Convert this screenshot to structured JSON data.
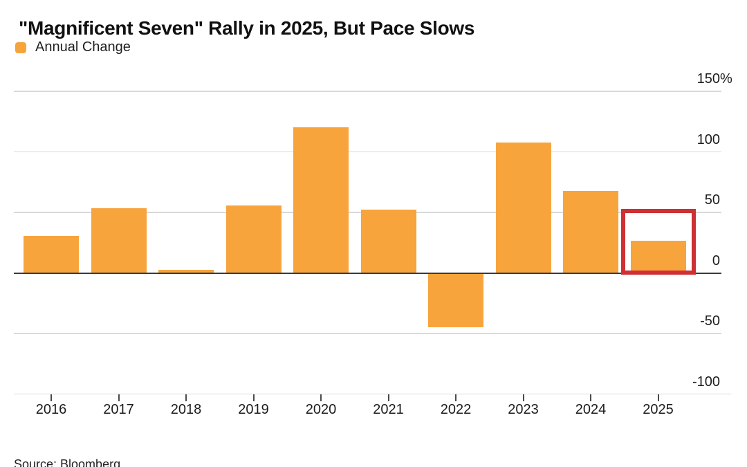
{
  "page": {
    "background": "#FFFFFF"
  },
  "header": {
    "title": "\"Magnificent Seven\" Rally in 2025, But Pace Slows"
  },
  "legend": {
    "items": [
      {
        "label": "Annual Change",
        "swatch_color": "#F7A43D"
      }
    ]
  },
  "footer": {
    "source": "Source: Bloomberg"
  },
  "chart_data": {
    "type": "bar",
    "title": "\"Magnificent Seven\" Rally in 2025, But Pace Slows",
    "legend": [
      "Annual Change"
    ],
    "legend_position": "top-left",
    "categories": [
      "2016",
      "2017",
      "2018",
      "2019",
      "2020",
      "2021",
      "2022",
      "2023",
      "2024",
      "2025"
    ],
    "values": [
      30,
      53,
      2,
      55,
      120,
      52,
      -45,
      107,
      67,
      26
    ],
    "unit": "%",
    "xlabel": "",
    "ylabel": "",
    "ylim": [
      -100,
      150
    ],
    "yticks": [
      150,
      100,
      50,
      0,
      -50,
      -100
    ],
    "ytick_labels": [
      "150%",
      "100",
      "50",
      "0",
      "-50",
      "-100"
    ],
    "grid": "horizontal",
    "bar_color": "#F7A43D",
    "grid_color": "#D9D9D9",
    "zero_line_color": "#3A3A3A",
    "highlight": {
      "category": "2025",
      "box_color": "#CF3034"
    },
    "source": "Source: Bloomberg"
  }
}
